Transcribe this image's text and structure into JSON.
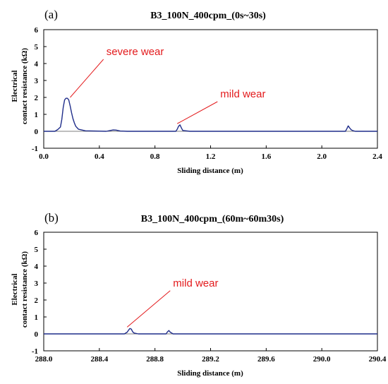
{
  "colors": {
    "series": "#1f2d8a",
    "annotation": "#e31a1c",
    "zero_line": "#7f7f7f",
    "axes": "#000000"
  },
  "chart_data": [
    {
      "type": "line",
      "panel": "(a)",
      "title": "B3_100N_400cpm_(0s~30s)",
      "xlabel": "Sliding distance (m)",
      "ylabel": [
        "Electrical",
        "contact resistance (kΩ)"
      ],
      "xlim": [
        0.0,
        2.4
      ],
      "ylim": [
        -1,
        6
      ],
      "xticks": [
        "0.0",
        "0.4",
        "0.8",
        "1.2",
        "1.6",
        "2.0",
        "2.4"
      ],
      "yticks": [
        "-1",
        "0",
        "1",
        "2",
        "3",
        "4",
        "5",
        "6"
      ],
      "grid": false,
      "zero_line": true,
      "series": [
        {
          "x": [
            0.0,
            0.08,
            0.1,
            0.12,
            0.13,
            0.14,
            0.15,
            0.16,
            0.17,
            0.18,
            0.19,
            0.2,
            0.21,
            0.22,
            0.23,
            0.25,
            0.3,
            0.45,
            0.48,
            0.5,
            0.52,
            0.55,
            0.6,
            0.95,
            0.96,
            0.97,
            0.98,
            0.99,
            1.0,
            1.05,
            2.17,
            2.18,
            2.19,
            2.2,
            2.21,
            2.22,
            2.24,
            2.4
          ],
          "y": [
            0.0,
            0.0,
            0.1,
            0.25,
            0.7,
            1.4,
            1.85,
            1.95,
            1.95,
            1.85,
            1.5,
            1.1,
            0.75,
            0.5,
            0.3,
            0.12,
            0.03,
            0.0,
            0.05,
            0.08,
            0.07,
            0.02,
            0.0,
            0.0,
            0.12,
            0.3,
            0.38,
            0.2,
            0.05,
            0.0,
            0.0,
            0.15,
            0.32,
            0.2,
            0.1,
            0.05,
            0.0,
            0.0
          ]
        }
      ],
      "annotations": [
        {
          "text": "severe wear",
          "text_x": 0.45,
          "text_y": 4.5,
          "point_x": 0.19,
          "point_y": 2.0
        },
        {
          "text": "mild wear",
          "text_x": 1.27,
          "text_y": 2.0,
          "point_x": 0.96,
          "point_y": 0.45
        }
      ]
    },
    {
      "type": "line",
      "panel": "(b)",
      "title": "B3_100N_400cpm_(60m~60m30s)",
      "xlabel": "Sliding distance (m)",
      "ylabel": [
        "Electrical",
        "contact resistance (kΩ)"
      ],
      "xlim": [
        288.0,
        290.4
      ],
      "ylim": [
        -1,
        6
      ],
      "xticks": [
        "288.0",
        "288.4",
        "288.8",
        "289.2",
        "289.6",
        "290.0",
        "290.4"
      ],
      "yticks": [
        "-1",
        "0",
        "1",
        "2",
        "3",
        "4",
        "5",
        "6"
      ],
      "grid": false,
      "zero_line": true,
      "series": [
        {
          "x": [
            288.0,
            288.58,
            288.6,
            288.61,
            288.62,
            288.63,
            288.64,
            288.65,
            288.68,
            288.88,
            288.89,
            288.9,
            288.91,
            288.93,
            290.4
          ],
          "y": [
            0.0,
            0.0,
            0.1,
            0.22,
            0.32,
            0.28,
            0.12,
            0.05,
            0.0,
            0.0,
            0.12,
            0.2,
            0.1,
            0.0,
            0.0
          ]
        }
      ],
      "annotations": [
        {
          "text": "mild wear",
          "text_x": 288.93,
          "text_y": 2.8,
          "point_x": 288.6,
          "point_y": 0.4
        }
      ]
    }
  ]
}
